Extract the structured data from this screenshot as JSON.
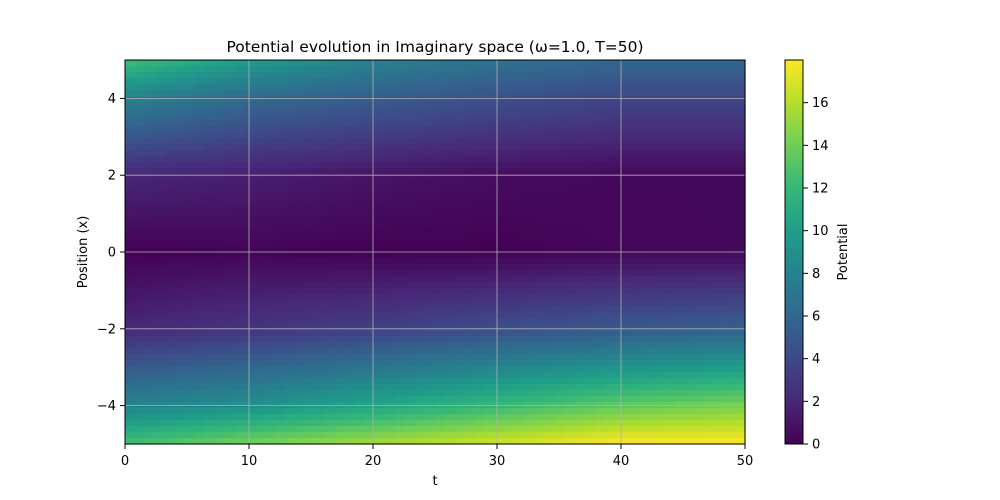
{
  "chart_data": {
    "type": "heatmap",
    "title": "Potential evolution in Imaginary space (ω=1.0, T=50)",
    "xlabel": "t",
    "ylabel": "Position (x)",
    "colorbar_label": "Potential",
    "colormap": "viridis",
    "xlim": [
      0,
      50
    ],
    "ylim": [
      -5,
      5
    ],
    "clim": [
      0,
      18
    ],
    "x_ticks": [
      0,
      10,
      20,
      30,
      40,
      50
    ],
    "x_tick_labels": [
      "0",
      "10",
      "20",
      "30",
      "40",
      "50"
    ],
    "y_ticks": [
      -4,
      -2,
      0,
      2,
      4
    ],
    "y_tick_labels": [
      "−4",
      "−2",
      "0",
      "2",
      "4"
    ],
    "colorbar_ticks": [
      0,
      2,
      4,
      6,
      8,
      10,
      12,
      14,
      16
    ],
    "colorbar_tick_labels": [
      "0",
      "2",
      "4",
      "6",
      "8",
      "10",
      "12",
      "14",
      "16"
    ],
    "grid": true,
    "sampled_values": {
      "t": [
        0,
        10,
        20,
        30,
        40,
        50
      ],
      "x": [
        5,
        4,
        2,
        0,
        -2,
        -4,
        -5
      ],
      "potential": [
        [
          12.5,
          9.9,
          8.0,
          6.8,
          6.0,
          6.0
        ],
        [
          8.0,
          6.2,
          5.3,
          4.5,
          3.8,
          3.8
        ],
        [
          2.0,
          1.5,
          1.0,
          0.6,
          0.4,
          0.4
        ],
        [
          0.0,
          0.2,
          0.0,
          0.0,
          0.3,
          0.4
        ],
        [
          2.0,
          2.7,
          3.4,
          4.3,
          5.0,
          5.5
        ],
        [
          8.0,
          9.0,
          10.5,
          12.0,
          13.5,
          14.3
        ],
        [
          12.5,
          14.2,
          15.5,
          16.8,
          18.0,
          18.0
        ]
      ]
    }
  }
}
